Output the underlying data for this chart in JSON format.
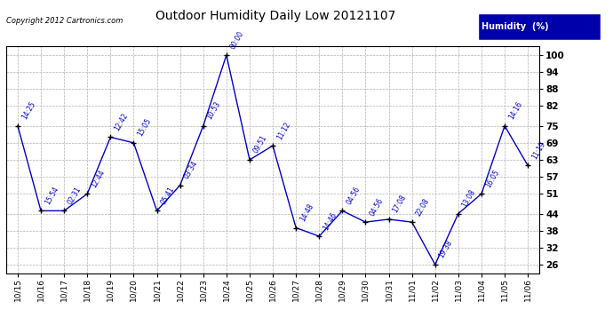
{
  "title": "Outdoor Humidity Daily Low 20121107",
  "copyright": "Copyright 2012 Cartronics.com",
  "legend_label": "Humidity  (%)",
  "x_labels": [
    "10/15",
    "10/16",
    "10/17",
    "10/18",
    "10/19",
    "10/20",
    "10/21",
    "10/22",
    "10/23",
    "10/24",
    "10/25",
    "10/26",
    "10/27",
    "10/28",
    "10/29",
    "10/30",
    "10/31",
    "11/01",
    "11/02",
    "11/03",
    "11/04",
    "11/05",
    "11/06"
  ],
  "y_values": [
    75,
    45,
    45,
    51,
    71,
    69,
    45,
    54,
    75,
    100,
    63,
    68,
    39,
    36,
    45,
    41,
    42,
    41,
    26,
    44,
    51,
    75,
    61
  ],
  "point_labels": [
    "14:25",
    "15:54",
    "02:31",
    "12:44",
    "12:42",
    "15:05",
    "05:41",
    "03:34",
    "10:53",
    "00:00",
    "09:51",
    "11:12",
    "14:48",
    "14:46",
    "04:56",
    "04:56",
    "17:08",
    "22:08",
    "19:38",
    "13:08",
    "16:05",
    "14:16",
    "11:19"
  ],
  "y_ticks": [
    26,
    32,
    38,
    44,
    51,
    57,
    63,
    69,
    75,
    82,
    88,
    94,
    100
  ],
  "y_min": 23,
  "y_max": 103,
  "line_color": "#0000cc",
  "marker_color": "#000000",
  "background_color": "#ffffff",
  "grid_color": "#b0b0b0",
  "title_color": "#000000",
  "legend_bg": "#0000aa",
  "legend_fg": "#ffffff",
  "copyright_color": "#000000",
  "annotation_color": "#0000cc",
  "special_annotation": "00:00",
  "special_annotation_color": "#0000cc"
}
